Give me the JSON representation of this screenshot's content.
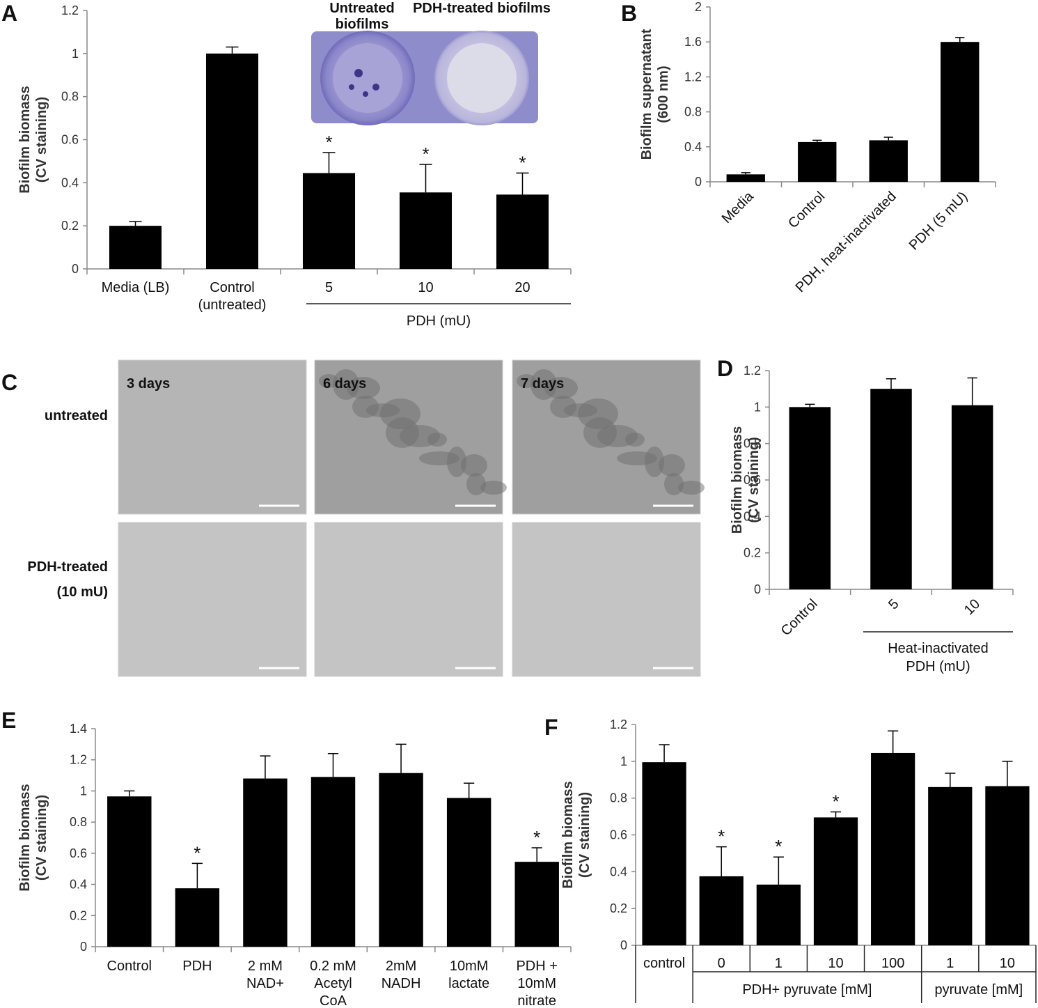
{
  "chart_data": [
    {
      "type": "bar",
      "panel": "A",
      "y_label": "Biofilm biomass\n(CV staining)",
      "categories": [
        "Media (LB)",
        "Control\n(untreated)",
        "5",
        "10",
        "20"
      ],
      "group_labels": [
        "PDH (mU)"
      ],
      "values": [
        0.2,
        1.0,
        0.445,
        0.355,
        0.345
      ],
      "errors": [
        0.02,
        0.03,
        0.095,
        0.13,
        0.1
      ],
      "significance": [
        null,
        null,
        "*",
        "*",
        "*"
      ],
      "inset_labels": [
        "Untreated\nbiofilms",
        "PDH-treated biofilms"
      ],
      "color": "#000000",
      "ylim": [
        0,
        1.2
      ],
      "yticks": [
        0,
        0.2,
        0.4,
        0.6,
        0.8,
        1,
        1.2
      ],
      "grid": false
    },
    {
      "type": "bar",
      "panel": "B",
      "y_label": "Biofilm supernatant\n(600 nm)",
      "categories": [
        "Media",
        "Control",
        "PDH, heat-inactivated",
        "PDH (5 mU)"
      ],
      "values": [
        0.085,
        0.455,
        0.475,
        1.6
      ],
      "errors": [
        0.02,
        0.02,
        0.035,
        0.05
      ],
      "color": "#000000",
      "ylim": [
        0,
        2
      ],
      "yticks": [
        0,
        0.4,
        0.8,
        1.2,
        1.6,
        2
      ],
      "grid": false
    },
    {
      "type": "bar",
      "panel": "D",
      "y_label": "Biofilm biomass\n(CV staining)",
      "categories": [
        "Control",
        "5",
        "10"
      ],
      "group_labels": [
        "Heat-inactivated\nPDH (mU)"
      ],
      "values": [
        1.0,
        1.1,
        1.01
      ],
      "errors": [
        0.015,
        0.055,
        0.15
      ],
      "color": "#000000",
      "ylim": [
        0,
        1.2
      ],
      "yticks": [
        0,
        0.2,
        0.4,
        0.6,
        0.8,
        1,
        1.2
      ],
      "grid": false
    },
    {
      "type": "bar",
      "panel": "E",
      "y_label": "Biofilm biomass\n(CV staining)",
      "categories": [
        "Control",
        "PDH",
        "2 mM\nNAD+",
        "0.2 mM\nAcetyl\nCoA",
        "2mM\nNADH",
        "10mM\nlactate",
        "PDH +\n10mM\nnitrate"
      ],
      "values": [
        0.965,
        0.375,
        1.08,
        1.09,
        1.115,
        0.955,
        0.545
      ],
      "errors": [
        0.035,
        0.16,
        0.145,
        0.15,
        0.185,
        0.095,
        0.09
      ],
      "significance": [
        null,
        "*",
        null,
        null,
        null,
        null,
        "*"
      ],
      "color": "#000000",
      "ylim": [
        0,
        1.4
      ],
      "yticks": [
        0,
        0.2,
        0.4,
        0.6,
        0.8,
        1,
        1.2,
        1.4
      ],
      "grid": false
    },
    {
      "type": "bar",
      "panel": "F",
      "y_label": "Biofilm biomass\n(CV staining)",
      "categories": [
        "control",
        "0",
        "1",
        "10",
        "100",
        "1",
        "10"
      ],
      "group_labels": [
        "PDH+ pyruvate [mM]",
        "pyruvate [mM]"
      ],
      "values": [
        0.995,
        0.375,
        0.33,
        0.695,
        1.045,
        0.86,
        0.865
      ],
      "errors": [
        0.095,
        0.16,
        0.15,
        0.03,
        0.12,
        0.075,
        0.135
      ],
      "significance": [
        null,
        "*",
        "*",
        "*",
        null,
        null,
        null
      ],
      "color": "#000000",
      "ylim": [
        0,
        1.2
      ],
      "yticks": [
        0,
        0.2,
        0.4,
        0.6,
        0.8,
        1,
        1.2
      ],
      "grid": false
    }
  ],
  "micrographs": {
    "panel": "C",
    "columns": [
      "3 days",
      "6 days",
      "7 days"
    ],
    "rows": [
      "untreated",
      "PDH-treated\n(10 mU)"
    ]
  }
}
